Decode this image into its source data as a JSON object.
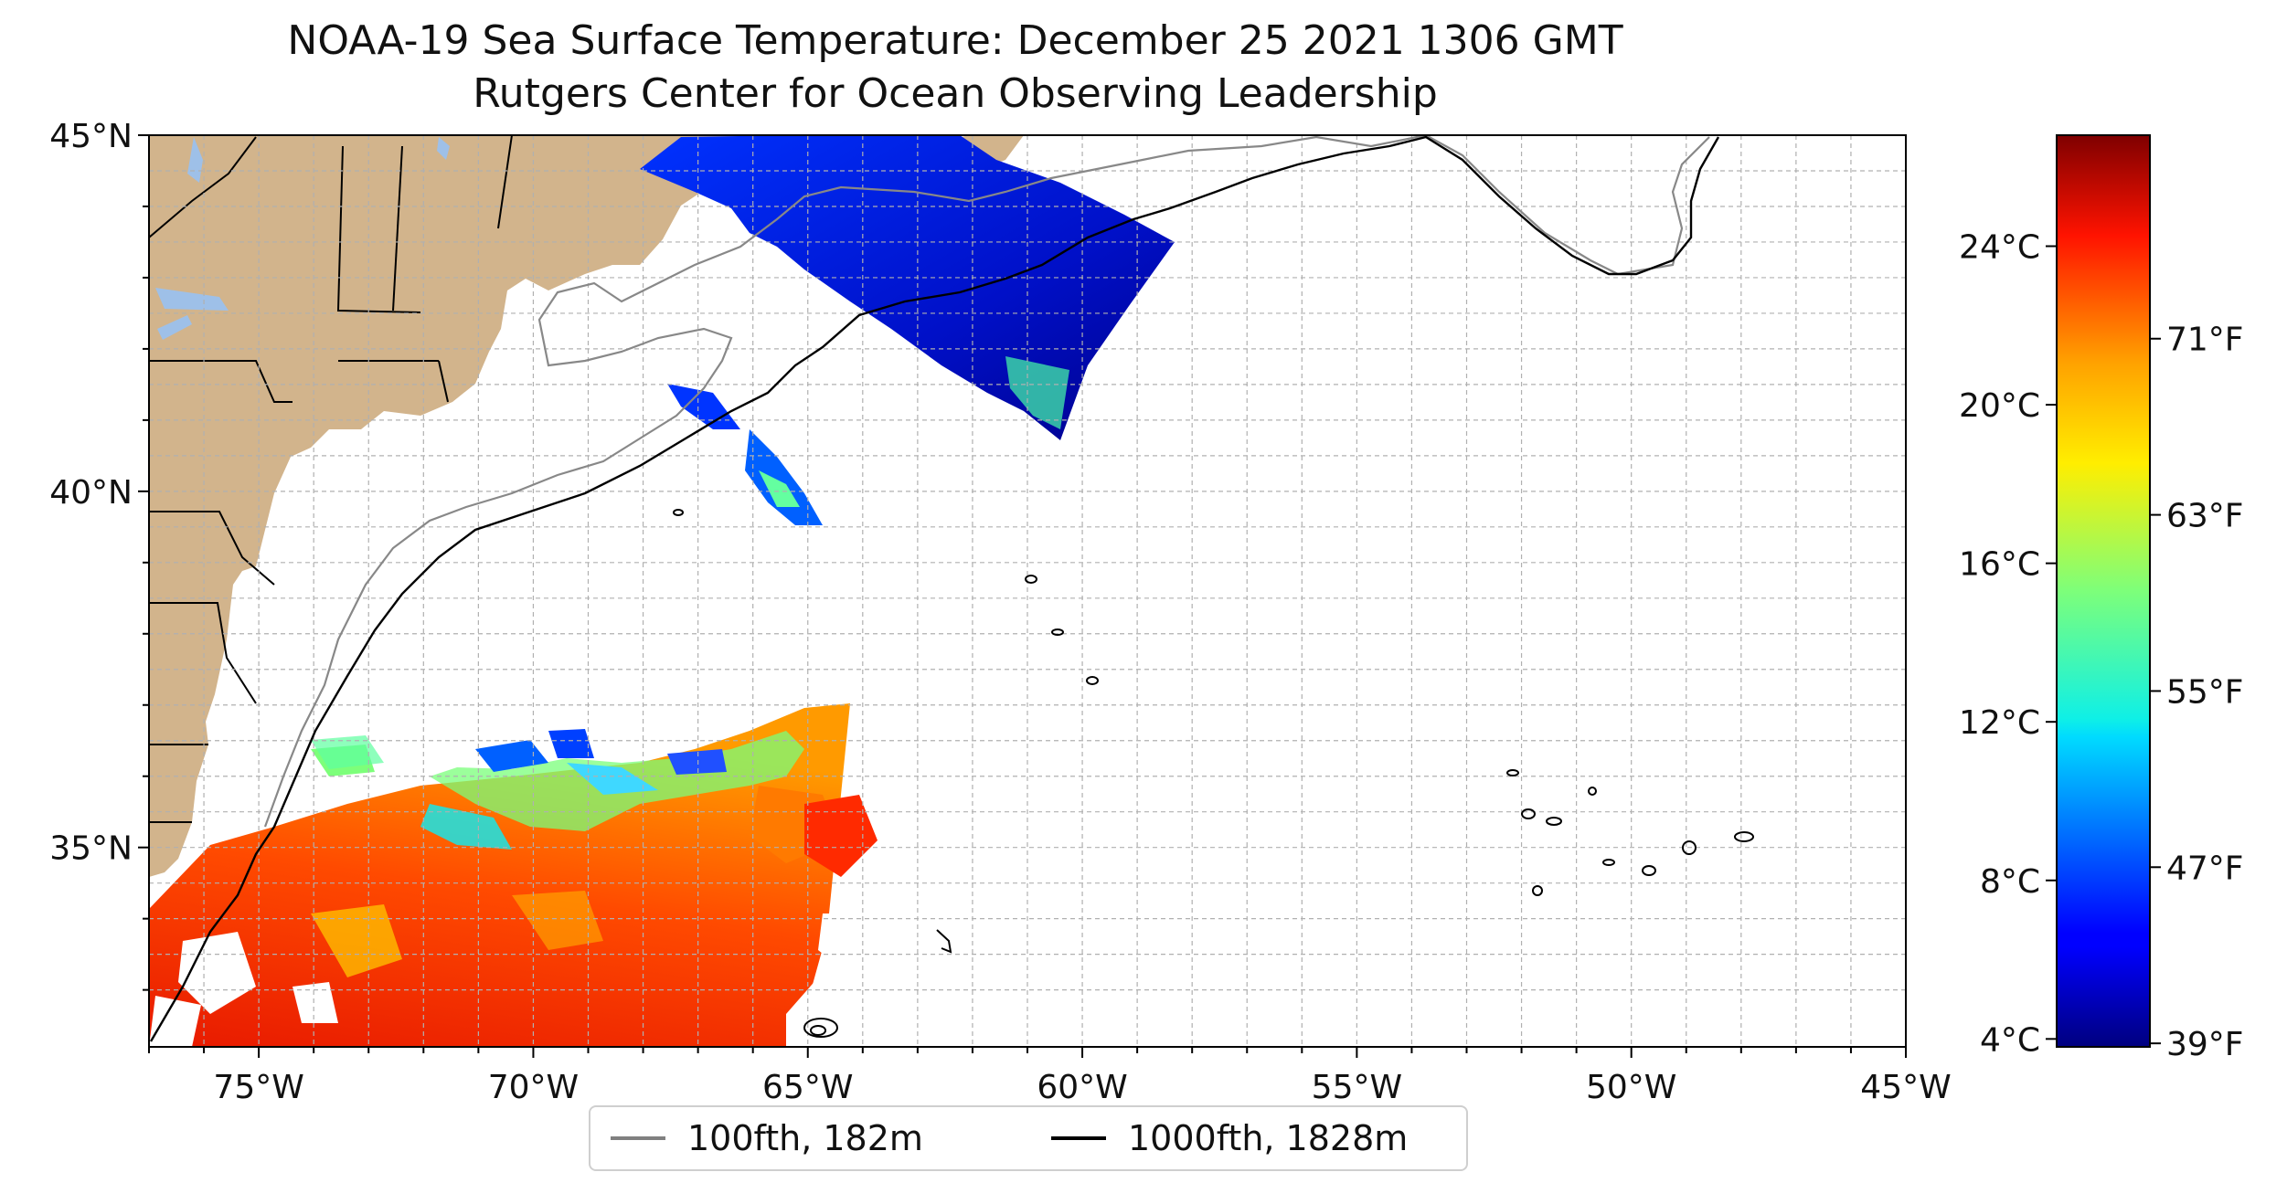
{
  "title": {
    "line1": "NOAA-19 Sea Surface Temperature: December 25 2021 1306 GMT",
    "line2": "Rutgers Center for Ocean Observing Leadership"
  },
  "map": {
    "lon_range": [
      -77,
      -45
    ],
    "lat_range": [
      32.2,
      45
    ],
    "x_ticks": [
      {
        "lon": -75,
        "label": "75°W"
      },
      {
        "lon": -70,
        "label": "70°W"
      },
      {
        "lon": -65,
        "label": "65°W"
      },
      {
        "lon": -60,
        "label": "60°W"
      },
      {
        "lon": -55,
        "label": "55°W"
      },
      {
        "lon": -50,
        "label": "50°W"
      },
      {
        "lon": -45,
        "label": "45°W"
      }
    ],
    "y_ticks": [
      {
        "lat": 45,
        "label": "45°N"
      },
      {
        "lat": 40,
        "label": "40°N"
      },
      {
        "lat": 35,
        "label": "35°N"
      }
    ],
    "grid": true,
    "land_color": "#d2b48c",
    "lake_color": "#9ec0e8"
  },
  "legend": {
    "position": "bottom-center",
    "items": [
      {
        "label": "100fth, 182m",
        "color": "#808080"
      },
      {
        "label": "1000fth, 1828m",
        "color": "#000000"
      }
    ]
  },
  "colorbar": {
    "colormap": "jet",
    "celsius_range": [
      3.8,
      26.8
    ],
    "celsius_ticks": [
      {
        "value": 24,
        "label": "24°C"
      },
      {
        "value": 20,
        "label": "20°C"
      },
      {
        "value": 16,
        "label": "16°C"
      },
      {
        "value": 12,
        "label": "12°C"
      },
      {
        "value": 8,
        "label": "8°C"
      },
      {
        "value": 4,
        "label": "4°C"
      }
    ],
    "fahrenheit_ticks": [
      {
        "value": 71,
        "label": "71°F"
      },
      {
        "value": 63,
        "label": "63°F"
      },
      {
        "value": 55,
        "label": "55°F"
      },
      {
        "value": 47,
        "label": "47°F"
      },
      {
        "value": 39,
        "label": "39°F"
      }
    ]
  }
}
